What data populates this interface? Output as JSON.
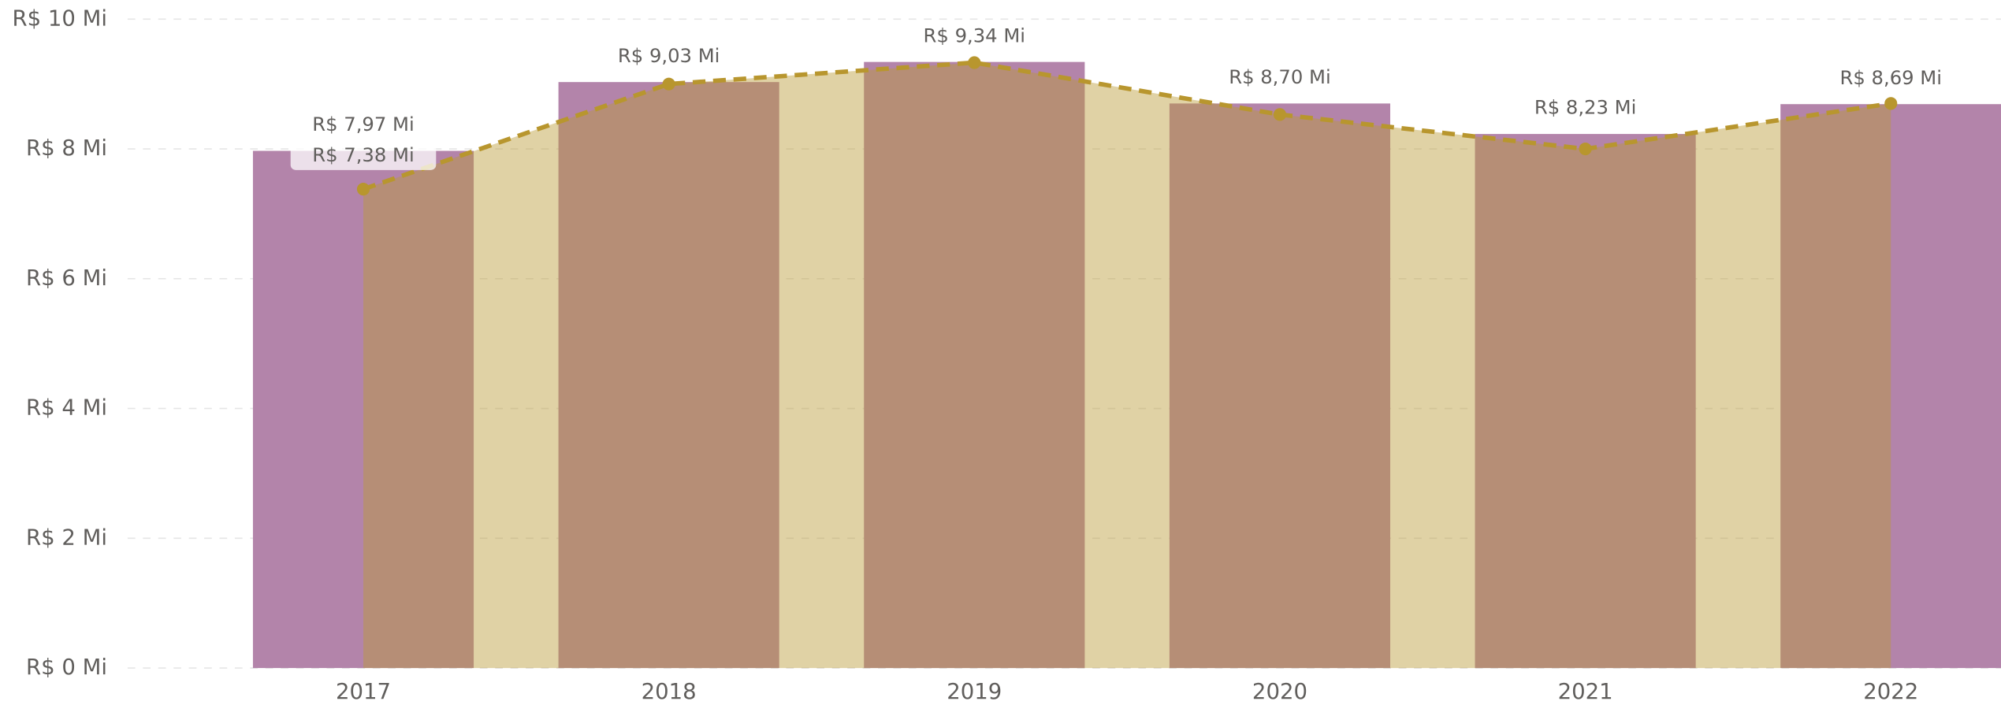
{
  "chart_data": {
    "type": "bar_line",
    "categories": [
      "2017",
      "2018",
      "2019",
      "2020",
      "2021",
      "2022"
    ],
    "series": [
      {
        "type": "bar",
        "color": "#b384aa",
        "values": [
          7.97,
          9.03,
          9.34,
          8.7,
          8.23,
          8.69
        ],
        "value_labels": [
          "R$ 7,97 Mi",
          "R$ 9,03 Mi",
          "R$ 9,34 Mi",
          "R$ 8,70 Mi",
          "R$ 8,23 Mi",
          "R$ 8,69 Mi"
        ]
      },
      {
        "type": "area_line",
        "color": "#b8962e",
        "area_color": "#ba9a36",
        "values": [
          7.38,
          9.0,
          9.33,
          8.53,
          8.0,
          8.7
        ],
        "value_labels": [
          "R$ 7,38 Mi",
          null,
          null,
          null,
          null,
          null
        ]
      }
    ],
    "ylim": [
      0,
      10
    ],
    "yticks": [
      {
        "value": 0,
        "label": "R$ 0 Mi"
      },
      {
        "value": 2,
        "label": "R$ 2 Mi"
      },
      {
        "value": 4,
        "label": "R$ 4 Mi"
      },
      {
        "value": 6,
        "label": "R$ 6 Mi"
      },
      {
        "value": 8,
        "label": "R$ 8 Mi"
      },
      {
        "value": 10,
        "label": "R$ 10 Mi"
      }
    ],
    "grid": true
  }
}
